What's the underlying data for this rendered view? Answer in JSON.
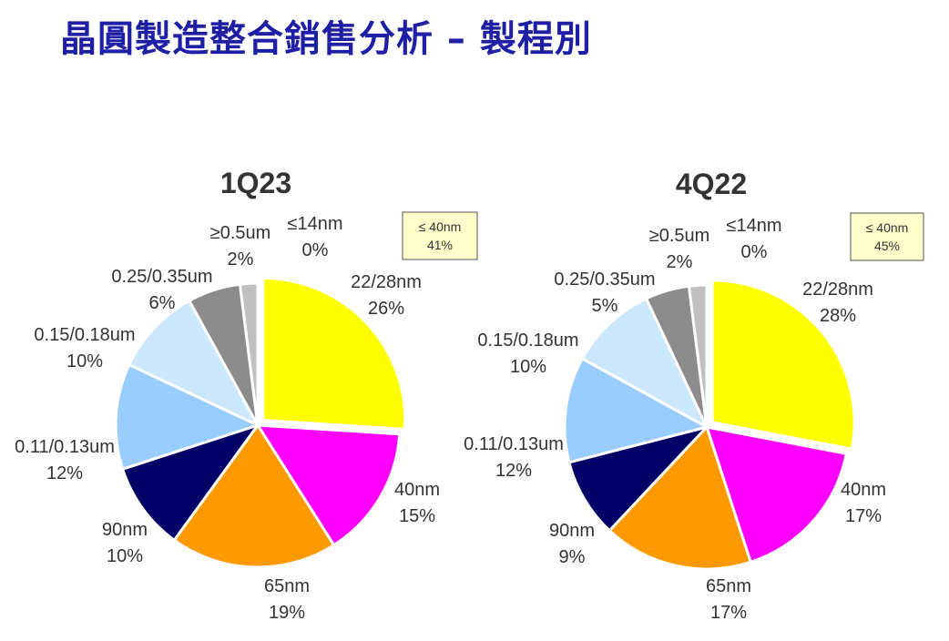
{
  "page": {
    "title": "晶圓製造整合銷售分析 – 製程別"
  },
  "chart_data": [
    {
      "type": "pie",
      "title": "1Q23",
      "callout": {
        "line1": "≤ 40nm",
        "line2": "41%"
      },
      "colors": {
        "callout_fill": "#ffffcc"
      },
      "categories": [
        "≤14nm",
        "22/28nm",
        "40nm",
        "65nm",
        "90nm",
        "0.11/0.13um",
        "0.15/0.18um",
        "0.25/0.35um",
        "≥0.5um"
      ],
      "values": [
        0,
        26,
        15,
        19,
        10,
        12,
        10,
        6,
        2
      ],
      "value_labels": [
        "0%",
        "26%",
        "15%",
        "19%",
        "10%",
        "12%",
        "10%",
        "6%",
        "2%"
      ],
      "slice_colors": [
        "#ffff00",
        "#ffff00",
        "#ff00ff",
        "#ff9900",
        "#000066",
        "#99ccff",
        "#cce8ff",
        "#8c8c8c",
        "#c0c0c0"
      ],
      "exploded": "22/28nm"
    },
    {
      "type": "pie",
      "title": "4Q22",
      "callout": {
        "line1": "≤ 40nm",
        "line2": "45%"
      },
      "colors": {
        "callout_fill": "#ffffcc"
      },
      "categories": [
        "≤14nm",
        "22/28nm",
        "40nm",
        "65nm",
        "90nm",
        "0.11/0.13um",
        "0.15/0.18um",
        "0.25/0.35um",
        "≥0.5um"
      ],
      "values": [
        0,
        28,
        17,
        17,
        9,
        12,
        10,
        5,
        2
      ],
      "value_labels": [
        "0%",
        "28%",
        "17%",
        "17%",
        "9%",
        "12%",
        "10%",
        "5%",
        "2%"
      ],
      "slice_colors": [
        "#ffff00",
        "#ffff00",
        "#ff00ff",
        "#ff9900",
        "#000066",
        "#99ccff",
        "#cce8ff",
        "#8c8c8c",
        "#c0c0c0"
      ],
      "exploded": "22/28nm"
    }
  ]
}
